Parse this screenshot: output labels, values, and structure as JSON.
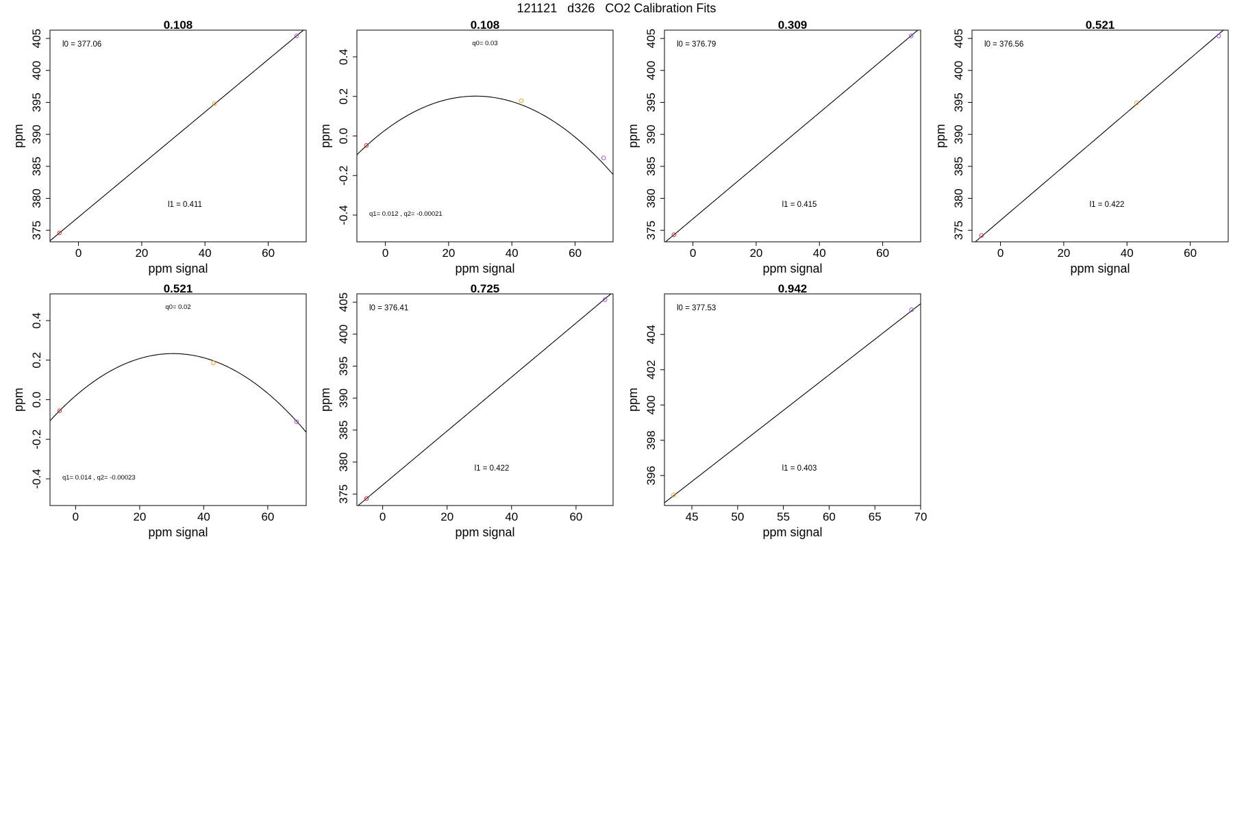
{
  "figure_title": "121121   d326   CO2 Calibration Fits",
  "colors": {
    "low": "#e03030",
    "mid": "#f0a030",
    "high": "#a050e0",
    "line": "#000000"
  },
  "chart_data": [
    {
      "type": "line",
      "title": "0.108",
      "xlabel": "ppm signal",
      "ylabel": "ppm",
      "xlim": [
        -9,
        72
      ],
      "ylim": [
        373.2,
        406.3
      ],
      "xticks": [
        0,
        20,
        40,
        60
      ],
      "xtick_labels": [
        "0",
        "20",
        "40",
        "60"
      ],
      "yticks": [
        375,
        380,
        385,
        390,
        395,
        400,
        405
      ],
      "ytick_labels": [
        "375",
        "380",
        "385",
        "390",
        "395",
        "400",
        "405"
      ],
      "fit": {
        "kind": "linear",
        "intercept": 377.06,
        "slope": 0.411
      },
      "points": [
        {
          "x": -6,
          "y": 374.6,
          "color": "low"
        },
        {
          "x": 43,
          "y": 394.8,
          "color": "mid"
        },
        {
          "x": 69,
          "y": 405.4,
          "color": "high"
        }
      ],
      "annotations": [
        {
          "text": "l0 =  377.06",
          "pos": "top-left",
          "size": "normal"
        },
        {
          "text": "l1 =  0.411",
          "pos": "bottom-center",
          "size": "normal"
        }
      ]
    },
    {
      "type": "line",
      "title": "0.108",
      "xlabel": "ppm signal",
      "ylabel": "ppm",
      "xlim": [
        -9,
        72
      ],
      "ylim": [
        -0.535,
        0.535
      ],
      "xticks": [
        0,
        20,
        40,
        60
      ],
      "xtick_labels": [
        "0",
        "20",
        "40",
        "60"
      ],
      "yticks": [
        -0.4,
        -0.2,
        0.0,
        0.2,
        0.4
      ],
      "ytick_labels": [
        "-0.4",
        "-0.2",
        "0.0",
        "0.2",
        "0.4"
      ],
      "fit": {
        "kind": "quadratic",
        "q0": 0.03,
        "q1": 0.012,
        "q2": -0.00021
      },
      "points": [
        {
          "x": -6,
          "y": -0.048,
          "color": "low"
        },
        {
          "x": 43,
          "y": 0.178,
          "color": "mid"
        },
        {
          "x": 69,
          "y": -0.111,
          "color": "high"
        }
      ],
      "annotations": [
        {
          "text": "q0= 0.03",
          "pos": "top-center",
          "size": "small"
        },
        {
          "text": "q1= 0.012 ,  q2= -0.00021",
          "pos": "bottom-left",
          "size": "small"
        }
      ]
    },
    {
      "type": "line",
      "title": "0.309",
      "xlabel": "ppm signal",
      "ylabel": "ppm",
      "xlim": [
        -9,
        72
      ],
      "ylim": [
        373.2,
        406.3
      ],
      "xticks": [
        0,
        20,
        40,
        60
      ],
      "xtick_labels": [
        "0",
        "20",
        "40",
        "60"
      ],
      "yticks": [
        375,
        380,
        385,
        390,
        395,
        400,
        405
      ],
      "ytick_labels": [
        "375",
        "380",
        "385",
        "390",
        "395",
        "400",
        "405"
      ],
      "fit": {
        "kind": "linear",
        "intercept": 376.79,
        "slope": 0.415
      },
      "points": [
        {
          "x": -6,
          "y": 374.3,
          "color": "low"
        },
        {
          "x": 69,
          "y": 405.4,
          "color": "high"
        }
      ],
      "annotations": [
        {
          "text": "l0 =  376.79",
          "pos": "top-left",
          "size": "normal"
        },
        {
          "text": "l1 =  0.415",
          "pos": "bottom-center",
          "size": "normal"
        }
      ]
    },
    {
      "type": "line",
      "title": "0.521",
      "xlabel": "ppm signal",
      "ylabel": "ppm",
      "xlim": [
        -9,
        72
      ],
      "ylim": [
        373.2,
        406.3
      ],
      "xticks": [
        0,
        20,
        40,
        60
      ],
      "xtick_labels": [
        "0",
        "20",
        "40",
        "60"
      ],
      "yticks": [
        375,
        380,
        385,
        390,
        395,
        400,
        405
      ],
      "ytick_labels": [
        "375",
        "380",
        "385",
        "390",
        "395",
        "400",
        "405"
      ],
      "fit": {
        "kind": "linear",
        "intercept": 376.56,
        "slope": 0.422
      },
      "points": [
        {
          "x": -6,
          "y": 374.2,
          "color": "low"
        },
        {
          "x": 43,
          "y": 394.9,
          "color": "mid"
        },
        {
          "x": 69,
          "y": 405.4,
          "color": "high"
        }
      ],
      "annotations": [
        {
          "text": "l0 =  376.56",
          "pos": "top-left",
          "size": "normal"
        },
        {
          "text": "l1 =  0.422",
          "pos": "bottom-center",
          "size": "normal"
        }
      ]
    },
    {
      "type": "line",
      "title": "0.521",
      "xlabel": "ppm signal",
      "ylabel": "ppm",
      "xlim": [
        -8,
        72
      ],
      "ylim": [
        -0.535,
        0.535
      ],
      "xticks": [
        0,
        20,
        40,
        60
      ],
      "xtick_labels": [
        "0",
        "20",
        "40",
        "60"
      ],
      "yticks": [
        -0.4,
        -0.2,
        0.0,
        0.2,
        0.4
      ],
      "ytick_labels": [
        "-0.4",
        "-0.2",
        "0.0",
        "0.2",
        "0.4"
      ],
      "fit": {
        "kind": "quadratic",
        "q0": 0.02,
        "q1": 0.014,
        "q2": -0.00023
      },
      "points": [
        {
          "x": -5,
          "y": -0.056,
          "color": "low"
        },
        {
          "x": 43,
          "y": 0.186,
          "color": "mid"
        },
        {
          "x": 69,
          "y": -0.112,
          "color": "high"
        }
      ],
      "annotations": [
        {
          "text": "q0= 0.02",
          "pos": "top-center",
          "size": "small"
        },
        {
          "text": "q1= 0.014 ,  q2= -0.00023",
          "pos": "bottom-left",
          "size": "small"
        }
      ]
    },
    {
      "type": "line",
      "title": "0.725",
      "xlabel": "ppm signal",
      "ylabel": "ppm",
      "xlim": [
        -8,
        71.5
      ],
      "ylim": [
        373.2,
        406.3
      ],
      "xticks": [
        0,
        20,
        40,
        60
      ],
      "xtick_labels": [
        "0",
        "20",
        "40",
        "60"
      ],
      "yticks": [
        375,
        380,
        385,
        390,
        395,
        400,
        405
      ],
      "ytick_labels": [
        "375",
        "380",
        "385",
        "390",
        "395",
        "400",
        "405"
      ],
      "fit": {
        "kind": "linear",
        "intercept": 376.41,
        "slope": 0.422
      },
      "points": [
        {
          "x": -5,
          "y": 374.3,
          "color": "low"
        },
        {
          "x": 69,
          "y": 405.4,
          "color": "high"
        }
      ],
      "annotations": [
        {
          "text": "l0 =  376.41",
          "pos": "top-left",
          "size": "normal"
        },
        {
          "text": "l1 =  0.422",
          "pos": "bottom-center",
          "size": "normal"
        }
      ]
    },
    {
      "type": "line",
      "title": "0.942",
      "xlabel": "ppm signal",
      "ylabel": "ppm",
      "xlim": [
        42,
        70
      ],
      "ylim": [
        394.3,
        406.3
      ],
      "xticks": [
        45,
        50,
        55,
        60,
        65,
        70
      ],
      "xtick_labels": [
        "45",
        "50",
        "55",
        "60",
        "65",
        "70"
      ],
      "yticks": [
        396,
        398,
        400,
        402,
        404
      ],
      "ytick_labels": [
        "396",
        "398",
        "400",
        "402",
        "404"
      ],
      "fit": {
        "kind": "linear",
        "intercept": 377.53,
        "slope": 0.403
      },
      "points": [
        {
          "x": 43,
          "y": 394.9,
          "color": "mid"
        },
        {
          "x": 69,
          "y": 405.4,
          "color": "high"
        }
      ],
      "annotations": [
        {
          "text": "l0 =  377.53",
          "pos": "top-left",
          "size": "normal"
        },
        {
          "text": "l1 =  0.403",
          "pos": "bottom-center",
          "size": "normal"
        }
      ]
    }
  ]
}
